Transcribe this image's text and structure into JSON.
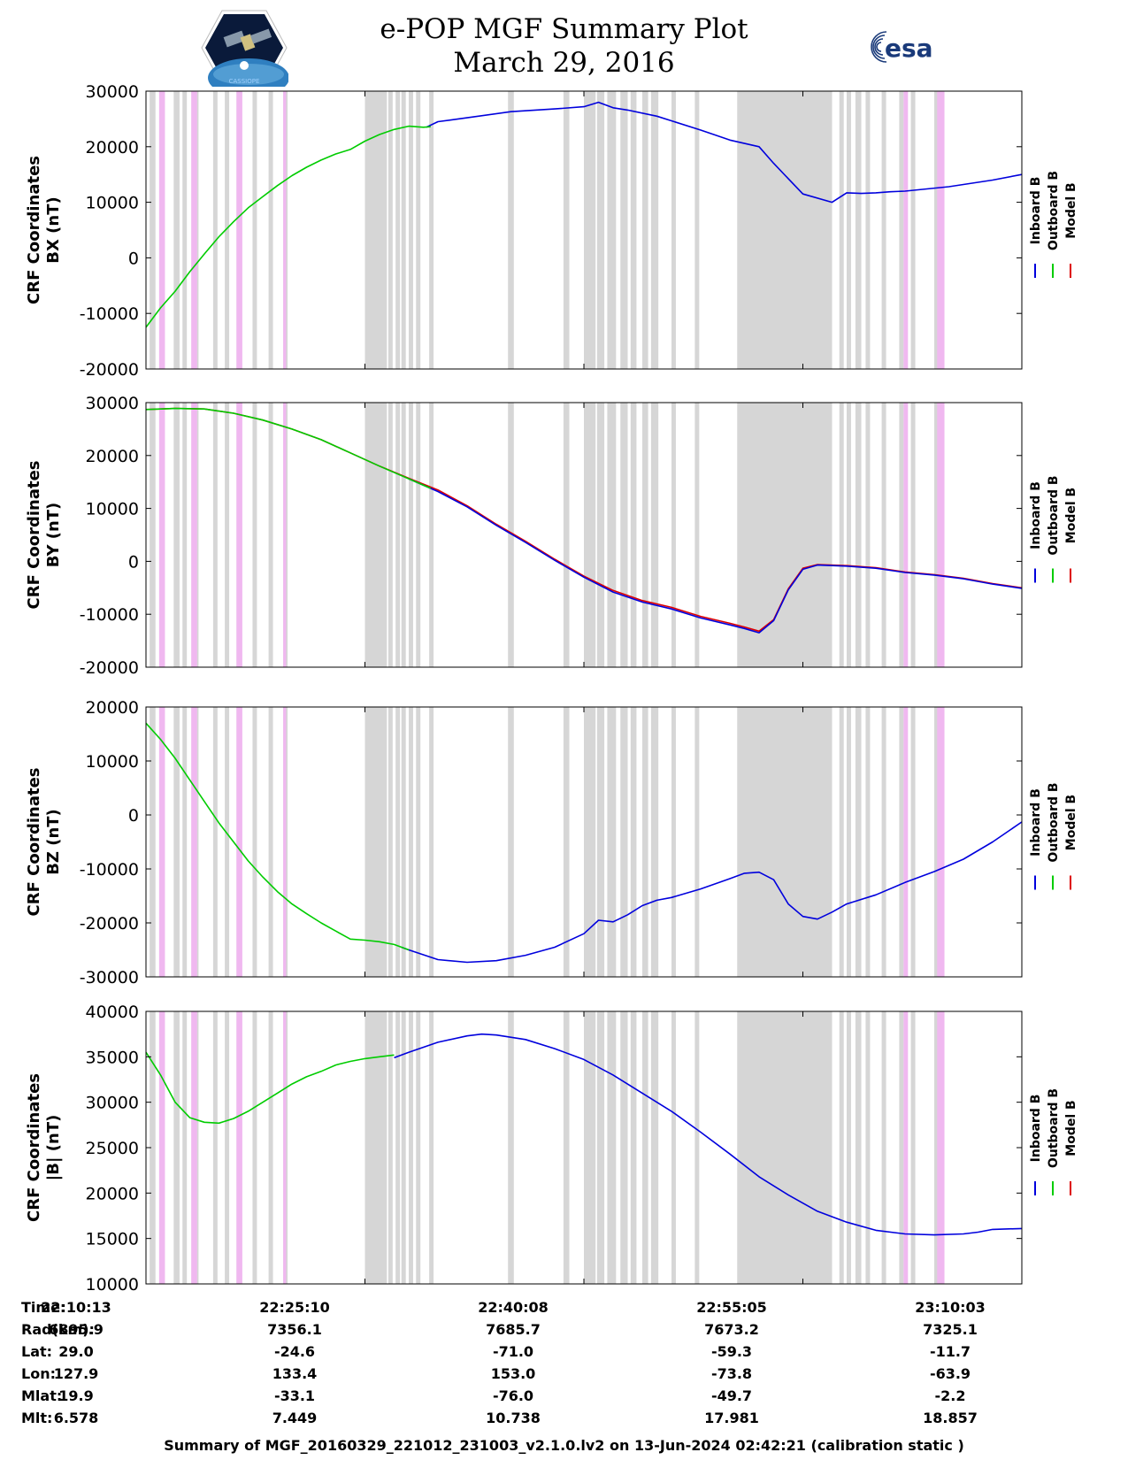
{
  "header": {
    "title_line1": "e-POP MGF Summary Plot",
    "title_line2": "March 29, 2016",
    "logo_left_text": "CASSIOPE",
    "logo_right_text": "esa"
  },
  "colors": {
    "inboard": "#0000dd",
    "outboard": "#00cc00",
    "model": "#dd0000",
    "shade_gray": "#d6d6d6",
    "shade_pink": "#f0b8f0"
  },
  "chart_data": [
    {
      "type": "line",
      "id": "bx",
      "ylabel_line1": "CRF Coordinates",
      "ylabel_line2": "BX (nT)",
      "ylim": [
        -20000,
        30000
      ],
      "yticks": [
        -20000,
        -10000,
        0,
        10000,
        20000,
        30000
      ],
      "ytick_labels": [
        "-20000",
        "-10000",
        "0",
        "10000",
        "20000",
        "30000"
      ],
      "xlim": [
        0,
        60
      ],
      "legend": [
        "Inboard B",
        "Outboard B",
        "Model B"
      ],
      "series": [
        {
          "name": "Inboard B",
          "color": "#0000dd",
          "x": [
            19.2,
            20,
            22,
            25,
            28,
            30,
            31,
            32,
            33,
            35,
            38,
            40,
            42,
            43,
            45,
            47,
            48,
            49,
            50,
            51,
            52,
            55,
            58,
            60
          ],
          "y": [
            23500,
            24500,
            25200,
            26300,
            26800,
            27200,
            28000,
            27000,
            26600,
            25500,
            23000,
            21200,
            20000,
            17000,
            11500,
            10000,
            11700,
            11600,
            11700,
            11900,
            12000,
            12800,
            14000,
            15000
          ]
        },
        {
          "name": "Outboard B",
          "color": "#00cc00",
          "x": [
            0,
            1,
            2,
            3,
            4,
            5,
            6,
            7,
            8,
            9,
            10,
            11,
            12,
            13,
            14,
            15,
            16,
            17,
            18,
            19,
            19.5
          ],
          "y": [
            -12500,
            -9000,
            -6000,
            -2500,
            700,
            3800,
            6500,
            9000,
            11000,
            13000,
            14800,
            16300,
            17600,
            18700,
            19500,
            21000,
            22200,
            23100,
            23700,
            23500,
            23600
          ]
        }
      ]
    },
    {
      "type": "line",
      "id": "by",
      "ylabel_line1": "CRF Coordinates",
      "ylabel_line2": "BY (nT)",
      "ylim": [
        -20000,
        30000
      ],
      "yticks": [
        -20000,
        -10000,
        0,
        10000,
        20000,
        30000
      ],
      "ytick_labels": [
        "-20000",
        "-10000",
        "0",
        "10000",
        "20000",
        "30000"
      ],
      "xlim": [
        0,
        60
      ],
      "legend": [
        "Inboard B",
        "Outboard B",
        "Model B"
      ],
      "series": [
        {
          "name": "Model B",
          "color": "#dd0000",
          "x": [
            0,
            2,
            4,
            6,
            8,
            10,
            12,
            14,
            16,
            18,
            20,
            22,
            24,
            26,
            28,
            30,
            32,
            34,
            36,
            38,
            40,
            41,
            42,
            43,
            44,
            45,
            46,
            48,
            50,
            52,
            54,
            56,
            58,
            60
          ],
          "y": [
            28700,
            28900,
            28800,
            28000,
            26700,
            25000,
            23000,
            20500,
            18000,
            15700,
            13500,
            10500,
            7000,
            3800,
            400,
            -2800,
            -5500,
            -7400,
            -8700,
            -10400,
            -11700,
            -12400,
            -13200,
            -11000,
            -5200,
            -1300,
            -600,
            -800,
            -1200,
            -2000,
            -2500,
            -3200,
            -4200,
            -5000
          ]
        },
        {
          "name": "Inboard B",
          "color": "#0000dd",
          "x": [
            18,
            20,
            22,
            24,
            26,
            28,
            30,
            32,
            34,
            36,
            38,
            40,
            41,
            42,
            43,
            44,
            45,
            46,
            48,
            50,
            52,
            54,
            56,
            58,
            60
          ],
          "y": [
            15600,
            13200,
            10300,
            6800,
            3600,
            200,
            -3000,
            -5800,
            -7700,
            -9000,
            -10700,
            -12000,
            -12700,
            -13500,
            -11200,
            -5400,
            -1500,
            -700,
            -900,
            -1300,
            -2100,
            -2600,
            -3300,
            -4300,
            -5100
          ]
        },
        {
          "name": "Outboard B",
          "color": "#00cc00",
          "x": [
            0,
            2,
            4,
            6,
            8,
            10,
            12,
            14,
            16,
            18,
            19.5
          ],
          "y": [
            28700,
            28900,
            28800,
            28000,
            26700,
            25000,
            23000,
            20500,
            18000,
            15600,
            13800
          ]
        }
      ]
    },
    {
      "type": "line",
      "id": "bz",
      "ylabel_line1": "CRF Coordinates",
      "ylabel_line2": "BZ (nT)",
      "ylim": [
        -30000,
        20000
      ],
      "yticks": [
        -30000,
        -20000,
        -10000,
        0,
        10000,
        20000
      ],
      "ytick_labels": [
        "-30000",
        "-20000",
        "-10000",
        "0",
        "10000",
        "20000"
      ],
      "xlim": [
        0,
        60
      ],
      "legend": [
        "Inboard B",
        "Outboard B",
        "Model B"
      ],
      "series": [
        {
          "name": "Inboard B",
          "color": "#0000dd",
          "x": [
            17.5,
            18,
            20,
            22,
            24,
            26,
            28,
            30,
            31,
            32,
            33,
            34,
            35,
            36,
            38,
            40,
            41,
            42,
            43,
            44,
            45,
            46,
            47,
            48,
            50,
            52,
            54,
            56,
            58,
            60
          ],
          "y": [
            -24500,
            -25000,
            -26800,
            -27300,
            -27000,
            -26000,
            -24500,
            -22000,
            -19500,
            -19800,
            -18500,
            -16800,
            -15800,
            -15300,
            -13700,
            -11800,
            -10800,
            -10600,
            -12000,
            -16500,
            -18800,
            -19300,
            -18000,
            -16500,
            -14800,
            -12500,
            -10500,
            -8200,
            -5000,
            -1300
          ]
        },
        {
          "name": "Outboard B",
          "color": "#00cc00",
          "x": [
            0,
            1,
            2,
            3,
            4,
            5,
            6,
            7,
            8,
            9,
            10,
            11,
            12,
            13,
            14,
            15,
            16,
            17,
            18
          ],
          "y": [
            17000,
            14000,
            10500,
            6500,
            2500,
            -1500,
            -5000,
            -8500,
            -11500,
            -14200,
            -16500,
            -18300,
            -20000,
            -21500,
            -23000,
            -23200,
            -23500,
            -24000,
            -25000
          ]
        }
      ]
    },
    {
      "type": "line",
      "id": "bmag",
      "ylabel_line1": "CRF Coordinates",
      "ylabel_line2": "|B| (nT)",
      "ylim": [
        10000,
        40000
      ],
      "yticks": [
        10000,
        15000,
        20000,
        25000,
        30000,
        35000,
        40000
      ],
      "ytick_labels": [
        "10000",
        "15000",
        "20000",
        "25000",
        "30000",
        "35000",
        "40000"
      ],
      "xlim": [
        0,
        60
      ],
      "legend": [
        "Inboard B",
        "Outboard B",
        "Model B"
      ],
      "series": [
        {
          "name": "Inboard B",
          "color": "#0000dd",
          "x": [
            17,
            18,
            20,
            22,
            23,
            24,
            26,
            28,
            30,
            32,
            34,
            36,
            38,
            40,
            42,
            44,
            46,
            48,
            50,
            52,
            54,
            56,
            57,
            58,
            60
          ],
          "y": [
            34900,
            35500,
            36600,
            37300,
            37500,
            37400,
            36900,
            35900,
            34700,
            33000,
            31000,
            29000,
            26700,
            24300,
            21800,
            19800,
            18000,
            16800,
            15900,
            15500,
            15400,
            15500,
            15700,
            16000,
            16100
          ]
        },
        {
          "name": "Outboard B",
          "color": "#00cc00",
          "x": [
            0,
            1,
            2,
            3,
            4,
            5,
            6,
            7,
            8,
            9,
            10,
            11,
            12,
            13,
            14,
            15,
            16,
            17
          ],
          "y": [
            35500,
            33000,
            30000,
            28300,
            27800,
            27700,
            28200,
            29000,
            30000,
            31000,
            32000,
            32800,
            33400,
            34100,
            34500,
            34800,
            35000,
            35200
          ]
        }
      ]
    }
  ],
  "shading": {
    "gray": [
      [
        0.25,
        0.65
      ],
      [
        1.9,
        2.3
      ],
      [
        2.5,
        2.8
      ],
      [
        3.3,
        3.6
      ],
      [
        4.6,
        4.9
      ],
      [
        5.4,
        5.7
      ],
      [
        6.2,
        6.5
      ],
      [
        7.3,
        7.6
      ],
      [
        8.4,
        8.7
      ],
      [
        9.4,
        9.7
      ],
      [
        15.0,
        16.5
      ],
      [
        16.6,
        16.9
      ],
      [
        17.1,
        17.4
      ],
      [
        17.5,
        17.8
      ],
      [
        18.0,
        18.3
      ],
      [
        18.5,
        18.8
      ],
      [
        19.4,
        19.7
      ],
      [
        24.8,
        25.2
      ],
      [
        28.6,
        29.0
      ],
      [
        30.0,
        30.8
      ],
      [
        30.9,
        31.4
      ],
      [
        31.6,
        32.2
      ],
      [
        32.5,
        33.0
      ],
      [
        33.2,
        33.6
      ],
      [
        34.0,
        34.4
      ],
      [
        34.6,
        35.1
      ],
      [
        36.0,
        36.3
      ],
      [
        37.6,
        37.9
      ],
      [
        40.5,
        47.0
      ],
      [
        47.5,
        47.8
      ],
      [
        48.0,
        48.3
      ],
      [
        48.6,
        49.0
      ],
      [
        49.3,
        49.6
      ],
      [
        50.4,
        50.7
      ],
      [
        51.6,
        51.9
      ],
      [
        52.4,
        52.7
      ],
      [
        54.0,
        54.5
      ]
    ],
    "pink": [
      [
        0.9,
        1.3
      ],
      [
        3.1,
        3.5
      ],
      [
        6.2,
        6.6
      ],
      [
        9.4,
        9.6
      ],
      [
        51.9,
        52.2
      ],
      [
        54.2,
        54.7
      ]
    ]
  },
  "info_table": {
    "labels": [
      "Time:",
      "Rad(km):",
      "Lat:",
      "Lon:",
      "Mlat:",
      "Mlt:"
    ],
    "columns": [
      [
        "22:10:13",
        "6895.9",
        "29.0",
        "127.9",
        "19.9",
        "6.578"
      ],
      [
        "22:25:10",
        "7356.1",
        "-24.6",
        "133.4",
        "-33.1",
        "7.449"
      ],
      [
        "22:40:08",
        "7685.7",
        "-71.0",
        "153.0",
        "-76.0",
        "10.738"
      ],
      [
        "22:55:05",
        "7673.2",
        "-59.3",
        "-73.8",
        "-49.7",
        "17.981"
      ],
      [
        "23:10:03",
        "7325.1",
        "-11.7",
        "-63.9",
        "-2.2",
        "18.857"
      ]
    ]
  },
  "footer": "Summary of MGF_20160329_221012_231003_v2.1.0.lv2 on 13-Jun-2024 02:42:21 (calibration static )"
}
